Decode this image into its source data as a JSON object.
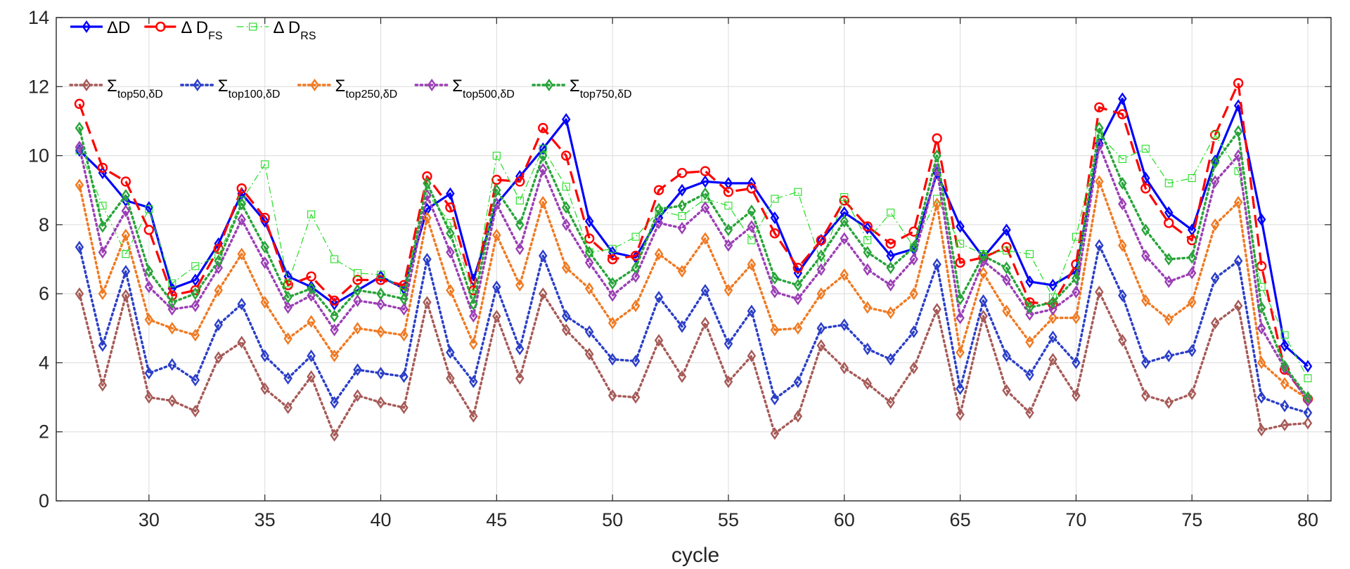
{
  "chart_data": {
    "type": "line",
    "title": "",
    "xlabel": "cycle",
    "ylabel": "",
    "xlim": [
      26,
      81
    ],
    "ylim": [
      0,
      14
    ],
    "grid": true,
    "legend_position": "top-left",
    "x_ticks": [
      30,
      35,
      40,
      45,
      50,
      55,
      60,
      65,
      70,
      75,
      80
    ],
    "x_tick_labels": [
      "30",
      "35",
      "40",
      "45",
      "50",
      "55",
      "60",
      "65",
      "70",
      "75",
      "80"
    ],
    "y_ticks": [
      0,
      2,
      4,
      6,
      8,
      10,
      12,
      14
    ],
    "y_tick_labels": [
      "0",
      "2",
      "4",
      "6",
      "8",
      "10",
      "12",
      "14"
    ],
    "x": [
      27,
      28,
      29,
      30,
      31,
      32,
      33,
      34,
      35,
      36,
      37,
      38,
      39,
      40,
      41,
      42,
      43,
      44,
      45,
      46,
      47,
      48,
      49,
      50,
      51,
      52,
      53,
      54,
      55,
      56,
      57,
      58,
      59,
      60,
      61,
      62,
      63,
      64,
      65,
      66,
      67,
      68,
      69,
      70,
      71,
      72,
      73,
      74,
      75,
      76,
      77,
      78,
      79,
      80
    ],
    "series": [
      {
        "name": "ΔD",
        "legend_main": "ΔD",
        "legend_sub": "",
        "row": 1,
        "color": "#0000ff",
        "dash": "",
        "width": 3.2,
        "marker": "diamond",
        "marker_size": 6,
        "values": [
          10.15,
          9.5,
          8.7,
          8.5,
          6.15,
          6.4,
          7.45,
          8.9,
          8.1,
          6.5,
          6.2,
          5.7,
          6.1,
          6.5,
          6.15,
          8.45,
          8.9,
          6.4,
          8.6,
          9.4,
          10.2,
          11.05,
          8.1,
          7.2,
          7.05,
          8.2,
          9.0,
          9.25,
          9.2,
          9.2,
          8.2,
          6.6,
          7.55,
          8.35,
          7.9,
          7.1,
          7.3,
          9.5,
          7.95,
          7.05,
          7.85,
          6.35,
          6.25,
          6.65,
          10.35,
          11.65,
          9.35,
          8.35,
          7.85,
          9.85,
          11.45,
          8.15,
          4.5,
          3.9
        ]
      },
      {
        "name": "Δ DFS",
        "legend_main": "Δ D",
        "legend_sub": "FS",
        "row": 1,
        "color": "#ff0000",
        "dash": "18,9",
        "width": 3.2,
        "marker": "circle",
        "marker_size": 6,
        "values": [
          11.5,
          9.65,
          9.25,
          7.85,
          5.95,
          6.1,
          7.3,
          9.05,
          8.2,
          6.25,
          6.5,
          5.8,
          6.4,
          6.4,
          6.25,
          9.4,
          8.5,
          6.1,
          9.3,
          9.25,
          10.8,
          10.0,
          7.6,
          7.0,
          7.1,
          9.0,
          9.5,
          9.55,
          8.95,
          9.05,
          7.75,
          6.75,
          7.55,
          8.7,
          7.95,
          7.45,
          7.8,
          10.5,
          6.9,
          7.05,
          7.35,
          5.75,
          5.7,
          6.85,
          11.4,
          11.2,
          9.05,
          8.05,
          7.55,
          10.6,
          12.1,
          6.8,
          3.8,
          2.95
        ]
      },
      {
        "name": "Δ DRS",
        "legend_main": "Δ D",
        "legend_sub": "RS",
        "row": 1,
        "color": "#22dd22",
        "dash": "10,4,2,4",
        "width": 1.2,
        "marker": "square",
        "marker_size": 5,
        "values": [
          10.15,
          8.55,
          7.15,
          8.45,
          6.3,
          6.8,
          7.1,
          8.7,
          9.75,
          6.3,
          8.3,
          7.0,
          6.6,
          6.55,
          6.1,
          8.9,
          8.05,
          6.0,
          10.0,
          8.7,
          10.2,
          9.1,
          7.2,
          7.3,
          7.65,
          8.4,
          8.25,
          8.75,
          8.55,
          7.55,
          8.75,
          8.95,
          6.9,
          8.8,
          7.55,
          8.35,
          7.35,
          8.75,
          7.45,
          7.15,
          7.25,
          7.15,
          5.9,
          7.65,
          10.6,
          9.9,
          10.2,
          9.2,
          9.35,
          10.6,
          9.55,
          6.2,
          4.8,
          3.55
        ]
      },
      {
        "name": "Σtop50,δD",
        "legend_main": "Σ",
        "legend_sub": "top50,δD",
        "row": 2,
        "color": "#a65a57",
        "dash": "2.5,4.5",
        "width": 3.4,
        "marker": "diamond",
        "marker_size": 6,
        "values": [
          6.0,
          3.35,
          5.95,
          3.0,
          2.9,
          2.6,
          4.15,
          4.6,
          3.25,
          2.7,
          3.6,
          1.9,
          3.05,
          2.85,
          2.7,
          5.75,
          3.55,
          2.45,
          5.35,
          3.55,
          6.0,
          4.95,
          4.25,
          3.05,
          3.0,
          4.65,
          3.6,
          5.15,
          3.45,
          4.2,
          1.95,
          2.45,
          4.5,
          3.85,
          3.4,
          2.85,
          3.85,
          5.55,
          2.5,
          5.35,
          3.2,
          2.55,
          4.1,
          3.05,
          6.05,
          4.65,
          3.05,
          2.85,
          3.1,
          5.15,
          5.65,
          2.05,
          2.2,
          2.25
        ]
      },
      {
        "name": "Σtop100,δD",
        "legend_main": "Σ",
        "legend_sub": "top100,δD",
        "row": 2,
        "color": "#2b3ec8",
        "dash": "2.5,4.5",
        "width": 3.4,
        "marker": "diamond",
        "marker_size": 6,
        "values": [
          7.35,
          4.5,
          6.65,
          3.7,
          3.95,
          3.5,
          5.1,
          5.7,
          4.2,
          3.55,
          4.2,
          2.85,
          3.8,
          3.7,
          3.6,
          7.0,
          4.3,
          3.45,
          6.2,
          4.4,
          7.1,
          5.35,
          4.9,
          4.1,
          4.05,
          5.9,
          5.05,
          6.1,
          4.55,
          5.5,
          2.95,
          3.45,
          5.0,
          5.1,
          4.4,
          4.1,
          4.9,
          6.85,
          3.25,
          5.8,
          4.2,
          3.65,
          4.75,
          4.0,
          7.4,
          5.95,
          4.0,
          4.2,
          4.35,
          6.45,
          6.95,
          3.0,
          2.75,
          2.55
        ]
      },
      {
        "name": "Σtop250,δD",
        "legend_main": "Σ",
        "legend_sub": "top250,δD",
        "row": 2,
        "color": "#f07a22",
        "dash": "2.5,4.5",
        "width": 3.4,
        "marker": "diamond",
        "marker_size": 6,
        "values": [
          9.15,
          6.0,
          7.7,
          5.25,
          5.0,
          4.8,
          6.1,
          7.15,
          5.75,
          4.7,
          5.2,
          4.2,
          5.0,
          4.9,
          4.8,
          8.2,
          6.1,
          4.55,
          7.7,
          6.25,
          8.65,
          6.75,
          6.15,
          5.15,
          5.65,
          7.15,
          6.65,
          7.6,
          6.1,
          6.85,
          4.95,
          5.0,
          6.0,
          6.55,
          5.6,
          5.45,
          6.0,
          8.6,
          4.3,
          6.6,
          5.5,
          4.6,
          5.3,
          5.3,
          9.25,
          7.4,
          5.8,
          5.25,
          5.75,
          8.0,
          8.65,
          4.0,
          3.4,
          2.95
        ]
      },
      {
        "name": "Σtop500,δD",
        "legend_main": "Σ",
        "legend_sub": "top500,δD",
        "row": 2,
        "color": "#9b3fb5",
        "dash": "2.5,4.5",
        "width": 3.4,
        "marker": "diamond",
        "marker_size": 6,
        "values": [
          10.25,
          7.2,
          8.4,
          6.2,
          5.55,
          5.65,
          6.75,
          8.15,
          6.9,
          5.6,
          5.95,
          4.95,
          5.8,
          5.7,
          5.55,
          8.85,
          7.2,
          5.35,
          8.6,
          7.3,
          9.6,
          8.0,
          6.9,
          5.95,
          6.5,
          8.05,
          7.9,
          8.5,
          7.4,
          7.95,
          6.05,
          5.85,
          6.7,
          7.6,
          6.7,
          6.25,
          7.0,
          9.6,
          5.3,
          6.95,
          6.4,
          5.4,
          5.55,
          6.05,
          10.3,
          8.6,
          7.1,
          6.35,
          6.6,
          9.25,
          10.0,
          5.0,
          3.85,
          2.9
        ]
      },
      {
        "name": "Σtop750,δD",
        "legend_main": "Σ",
        "legend_sub": "top750,δD",
        "row": 2,
        "color": "#28a43a",
        "dash": "2.5,4.5",
        "width": 3.4,
        "marker": "diamond",
        "marker_size": 6,
        "values": [
          10.8,
          7.95,
          8.85,
          6.65,
          5.75,
          6.0,
          6.95,
          8.6,
          7.35,
          5.9,
          6.15,
          5.35,
          6.1,
          6.0,
          5.85,
          9.2,
          7.75,
          5.7,
          9.0,
          8.0,
          10.0,
          8.5,
          7.2,
          6.3,
          6.75,
          8.45,
          8.55,
          8.9,
          7.85,
          8.4,
          6.45,
          6.25,
          7.1,
          8.1,
          7.2,
          6.75,
          7.35,
          10.0,
          5.85,
          7.1,
          6.75,
          5.6,
          5.75,
          6.45,
          10.8,
          9.2,
          7.85,
          7.0,
          7.05,
          9.8,
          10.7,
          5.6,
          3.9,
          3.0
        ]
      }
    ]
  }
}
